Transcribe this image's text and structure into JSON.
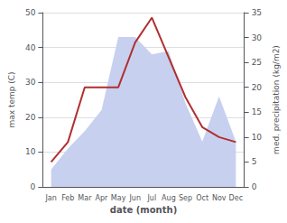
{
  "chart_data": {
    "type": "line",
    "categories": [
      "Jan",
      "Feb",
      "Mar",
      "Apr",
      "May",
      "Jun",
      "Jul",
      "Aug",
      "Sep",
      "Oct",
      "Nov",
      "Dec"
    ],
    "xlabel": "date (month)",
    "ylabel": "max temp (C)",
    "y2label": "med. precipitation (kg/m2)",
    "series": [
      {
        "type": "area",
        "color": "#c8d0f0",
        "values": [
          5,
          11,
          16,
          22,
          43,
          43,
          38,
          39,
          24,
          13,
          26,
          13
        ]
      },
      {
        "type": "line",
        "color": "#b03030",
        "axis": "y2",
        "values": [
          5,
          9,
          20,
          20,
          20,
          29,
          34,
          26,
          18,
          12,
          10,
          9
        ]
      }
    ],
    "ylim": [
      0,
      50
    ],
    "yticks": [
      0,
      10,
      20,
      30,
      40,
      50
    ],
    "y2lim": [
      0,
      35
    ],
    "y2ticks": [
      0,
      5,
      10,
      15,
      20,
      25,
      30,
      35
    ],
    "grid": true
  }
}
